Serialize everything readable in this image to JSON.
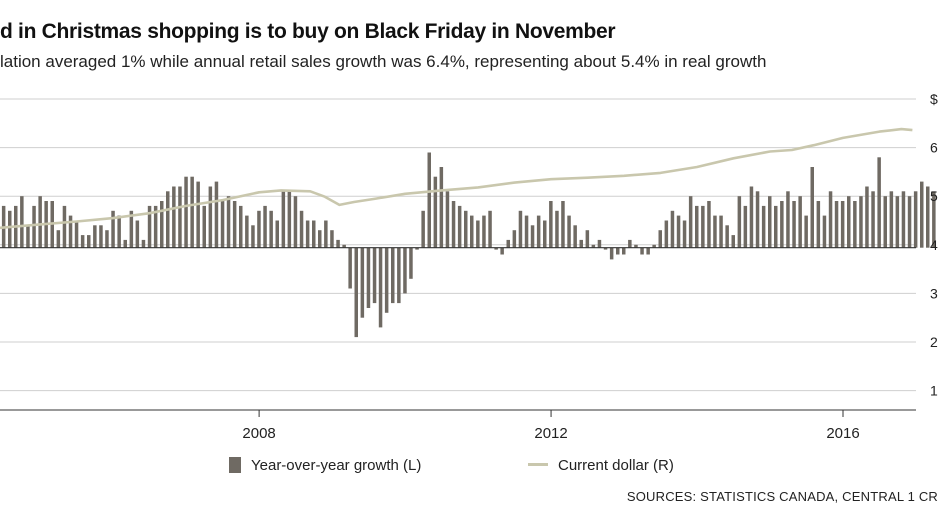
{
  "header": {
    "title": "d in Christmas shopping is to buy on Black Friday in November",
    "subtitle": "lation averaged 1% while annual retail sales growth was 6.4%, representing about 5.4% in real growth"
  },
  "legend": {
    "bars_label": "Year-over-year growth (L)",
    "line_label": "Current dollar (R)"
  },
  "source": "SOURCES: STATISTICS CANADA, CENTRAL 1 CR",
  "colors": {
    "bars": "#6f6a63",
    "line": "#c9c7ad",
    "grid": "#cfcfcf",
    "axis": "#333333"
  },
  "chart_data": {
    "type": "bar",
    "title": "",
    "xlabel": "",
    "x_tick_labels": [
      "2008",
      "2012",
      "2016"
    ],
    "x_tick_positions": [
      2008.0,
      2012.0,
      2016.0
    ],
    "x_range": [
      2004.45,
      2017.0
    ],
    "right_axis_tick_labels": [
      "$",
      "6",
      "5",
      "4",
      "3",
      "2",
      "1"
    ],
    "right_axis_tick_values": [
      7,
      6,
      5,
      4,
      3,
      2,
      1
    ],
    "right_ylim": [
      0.6,
      7.0
    ],
    "series": [
      {
        "name": "Year-over-year growth (L)",
        "kind": "bar",
        "axis": "right",
        "baseline": 3.94,
        "start": 2004.5,
        "step": 0.0833,
        "values": [
          4.8,
          4.7,
          4.8,
          5.0,
          4.4,
          4.8,
          5.0,
          4.9,
          4.9,
          4.3,
          4.8,
          4.6,
          4.5,
          4.2,
          4.2,
          4.4,
          4.4,
          4.3,
          4.7,
          4.6,
          4.1,
          4.7,
          4.5,
          4.1,
          4.8,
          4.8,
          4.9,
          5.1,
          5.2,
          5.2,
          5.4,
          5.4,
          5.3,
          4.8,
          5.2,
          5.3,
          4.9,
          5.0,
          4.9,
          4.8,
          4.6,
          4.4,
          4.7,
          4.8,
          4.7,
          4.5,
          5.1,
          5.1,
          5.0,
          4.7,
          4.5,
          4.5,
          4.3,
          4.5,
          4.3,
          4.1,
          4.0,
          3.1,
          2.1,
          2.5,
          2.7,
          2.8,
          2.3,
          2.6,
          2.8,
          2.8,
          3.0,
          3.3,
          3.9,
          4.7,
          5.9,
          5.4,
          5.6,
          5.1,
          4.9,
          4.8,
          4.7,
          4.6,
          4.5,
          4.6,
          4.7,
          3.9,
          3.8,
          4.1,
          4.3,
          4.7,
          4.6,
          4.4,
          4.6,
          4.5,
          4.9,
          4.7,
          4.9,
          4.6,
          4.4,
          4.1,
          4.3,
          4.0,
          4.1,
          3.9,
          3.7,
          3.8,
          3.8,
          4.1,
          4.0,
          3.8,
          3.8,
          4.0,
          4.3,
          4.5,
          4.7,
          4.6,
          4.5,
          5.0,
          4.8,
          4.8,
          4.9,
          4.6,
          4.6,
          4.4,
          4.2,
          5.0,
          4.8,
          5.2,
          5.1,
          4.8,
          5.0,
          4.8,
          4.9,
          5.1,
          4.9,
          5.0,
          4.6,
          5.6,
          4.9,
          4.6,
          5.1,
          4.9,
          4.9,
          5.0,
          4.9,
          5.0,
          5.2,
          5.1,
          5.8,
          5.0,
          5.1,
          5.0,
          5.1,
          5.0,
          5.1,
          5.3,
          5.2,
          5.1
        ],
        "clip_note": "first bars extend past the left edge of the visible area"
      },
      {
        "name": "Current dollar (R)",
        "kind": "line",
        "axis": "right",
        "points": [
          [
            2004.45,
            4.35
          ],
          [
            2005.0,
            4.42
          ],
          [
            2005.5,
            4.48
          ],
          [
            2006.0,
            4.55
          ],
          [
            2006.5,
            4.65
          ],
          [
            2007.0,
            4.8
          ],
          [
            2007.5,
            4.92
          ],
          [
            2008.0,
            5.08
          ],
          [
            2008.3,
            5.12
          ],
          [
            2008.7,
            5.1
          ],
          [
            2008.9,
            4.99
          ],
          [
            2009.1,
            4.82
          ],
          [
            2009.3,
            4.88
          ],
          [
            2009.6,
            4.95
          ],
          [
            2010.0,
            5.05
          ],
          [
            2010.5,
            5.12
          ],
          [
            2011.0,
            5.18
          ],
          [
            2011.5,
            5.28
          ],
          [
            2012.0,
            5.35
          ],
          [
            2012.5,
            5.38
          ],
          [
            2013.0,
            5.42
          ],
          [
            2013.5,
            5.48
          ],
          [
            2014.0,
            5.6
          ],
          [
            2014.5,
            5.78
          ],
          [
            2015.0,
            5.92
          ],
          [
            2015.3,
            5.95
          ],
          [
            2015.6,
            6.05
          ],
          [
            2016.0,
            6.2
          ],
          [
            2016.5,
            6.33
          ],
          [
            2016.8,
            6.38
          ],
          [
            2016.95,
            6.36
          ]
        ]
      }
    ]
  }
}
